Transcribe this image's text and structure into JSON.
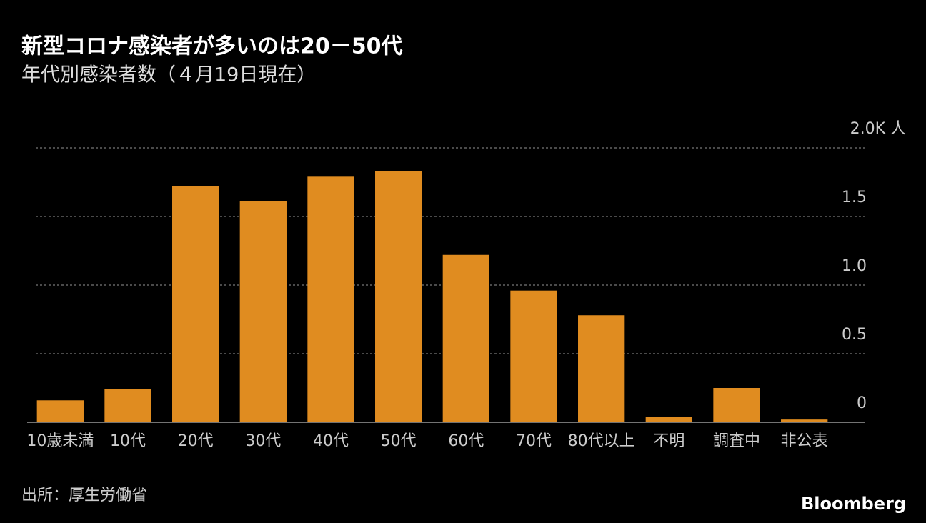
{
  "chart_data": {
    "type": "bar",
    "title": "新型コロナ感染者が多いのは20－50代",
    "subtitle": "年代別感染者数（４月19日現在）",
    "categories": [
      "10歳未満",
      "10代",
      "20代",
      "30代",
      "40代",
      "50代",
      "60代",
      "70代",
      "80代以上",
      "不明",
      "調査中",
      "非公表"
    ],
    "values": [
      0.16,
      0.24,
      1.72,
      1.61,
      1.79,
      1.83,
      1.22,
      0.96,
      0.78,
      0.04,
      0.25,
      0.02
    ],
    "color": "#e08c20",
    "ylim": [
      0,
      2
    ],
    "yticks": [
      0,
      0.5,
      {
        "value": 1,
        "label": "1.0"
      },
      1.5,
      {
        "value": 2,
        "label": "2.0K 人"
      }
    ],
    "grid": true,
    "source": "出所：厚生労働省",
    "logo": "Bloomberg"
  }
}
